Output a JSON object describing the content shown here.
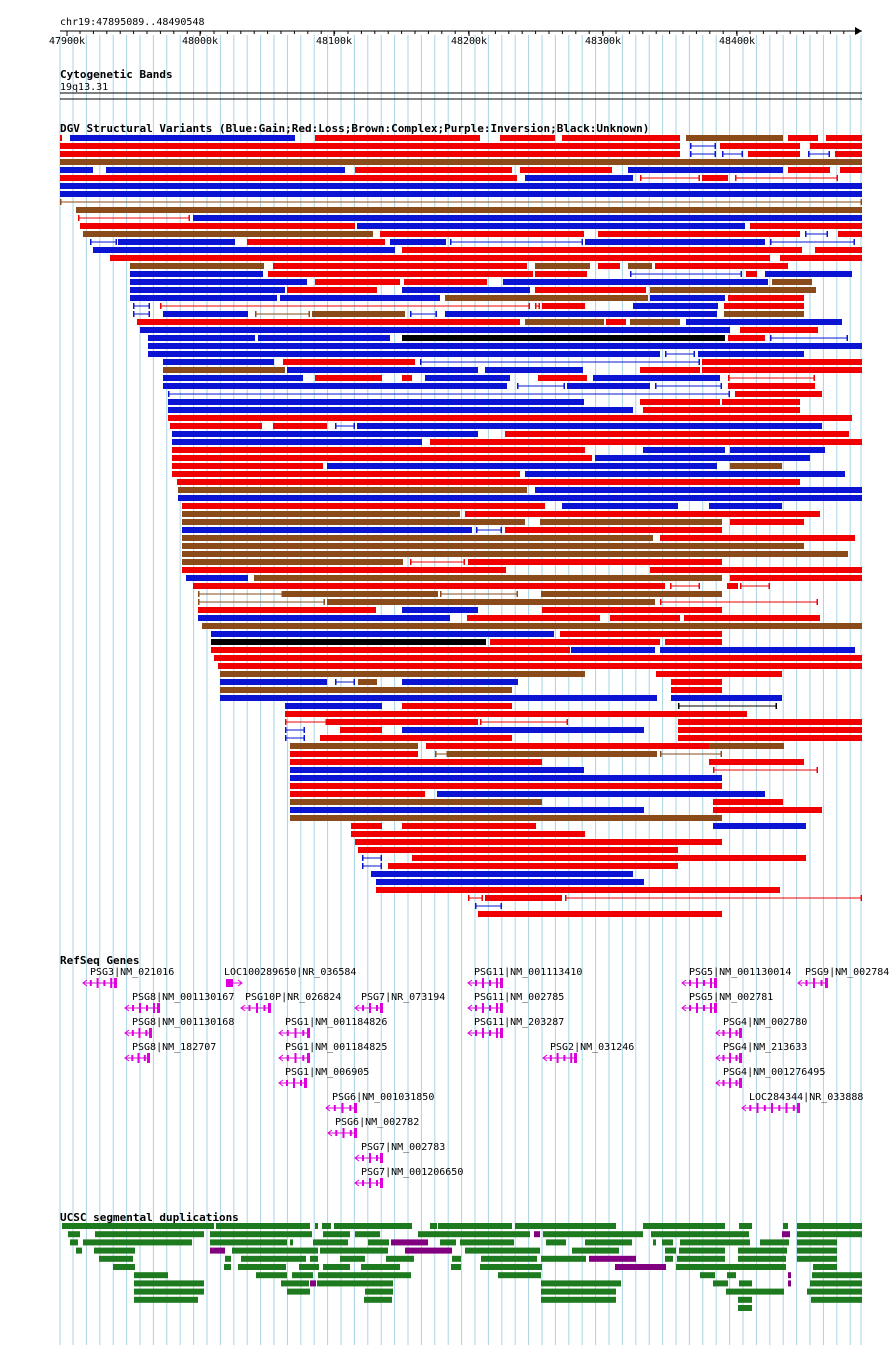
{
  "region": "chr19:47895089..48490548",
  "ruler": {
    "ticks": [
      "47900k",
      "48000k",
      "48100k",
      "48200k",
      "48300k",
      "48400k"
    ]
  },
  "colors": {
    "gain": "#0a14d2",
    "loss": "#f00000",
    "complex": "#8b4a1a",
    "inversion": "#800080",
    "unknown": "#000000",
    "gene": "#dd00dd",
    "segdup_green": "#1e7a1e",
    "segdup_purple": "#800080",
    "grid": "#aad4e6"
  },
  "tracks": {
    "cyto": {
      "title": "Cytogenetic Bands",
      "band": "19q13.31"
    },
    "dgv": {
      "title": "DGV Structural Variants (Blue:Gain;Red:Loss;Brown:Complex;Purple:Inversion;Black:Unknown)"
    },
    "refseq": {
      "title": "RefSeq Genes"
    },
    "segdup": {
      "title": "UCSC segmental duplications"
    }
  },
  "genes": [
    {
      "label": "PSG3|NM_021016"
    },
    {
      "label": "LOC100289650|NR_036584"
    },
    {
      "label": "PSG11|NM_001113410"
    },
    {
      "label": "PSG5|NM_001130014"
    },
    {
      "label": "PSG9|NM_002784"
    },
    {
      "label": "PSG8|NM_001130167"
    },
    {
      "label": "PSG10P|NR_026824"
    },
    {
      "label": "PSG7|NR_073194"
    },
    {
      "label": "PSG11|NM_002785"
    },
    {
      "label": "PSG5|NM_002781"
    },
    {
      "label": "PSG8|NM_001130168"
    },
    {
      "label": "PSG1|NM_001184826"
    },
    {
      "label": "PSG11|NM_203287"
    },
    {
      "label": "PSG4|NM_002780"
    },
    {
      "label": "PSG8|NM_182707"
    },
    {
      "label": "PSG1|NM_001184825"
    },
    {
      "label": "PSG2|NM_031246"
    },
    {
      "label": "PSG4|NM_213633"
    },
    {
      "label": "PSG1|NM_006905"
    },
    {
      "label": "PSG4|NM_001276495"
    },
    {
      "label": "PSG6|NM_001031850"
    },
    {
      "label": "LOC284344|NR_033888"
    },
    {
      "label": "PSG6|NM_002782"
    },
    {
      "label": "PSG7|NM_002783"
    },
    {
      "label": "PSG7|NM_001206650"
    }
  ]
}
